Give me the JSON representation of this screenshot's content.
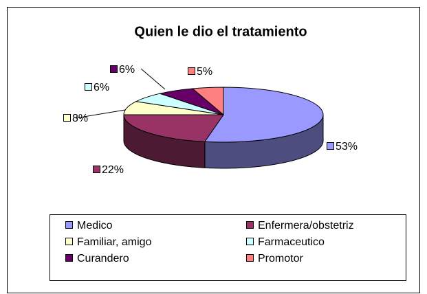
{
  "chart_data": {
    "type": "pie",
    "title": "Quien le dio el tratamiento",
    "categories": [
      "Medico",
      "Enfermera/obstetriz",
      "Familiar, amigo",
      "Farmaceutico",
      "Curandero",
      "Promotor"
    ],
    "values": [
      53,
      22,
      8,
      6,
      6,
      5
    ],
    "value_labels": [
      "53%",
      "22%",
      "8%",
      "6%",
      "6%",
      "5%"
    ],
    "colors": [
      "#9999FF",
      "#993366",
      "#FFFFCC",
      "#CCFFFF",
      "#660066",
      "#FF8080"
    ],
    "legend": "bottom"
  }
}
